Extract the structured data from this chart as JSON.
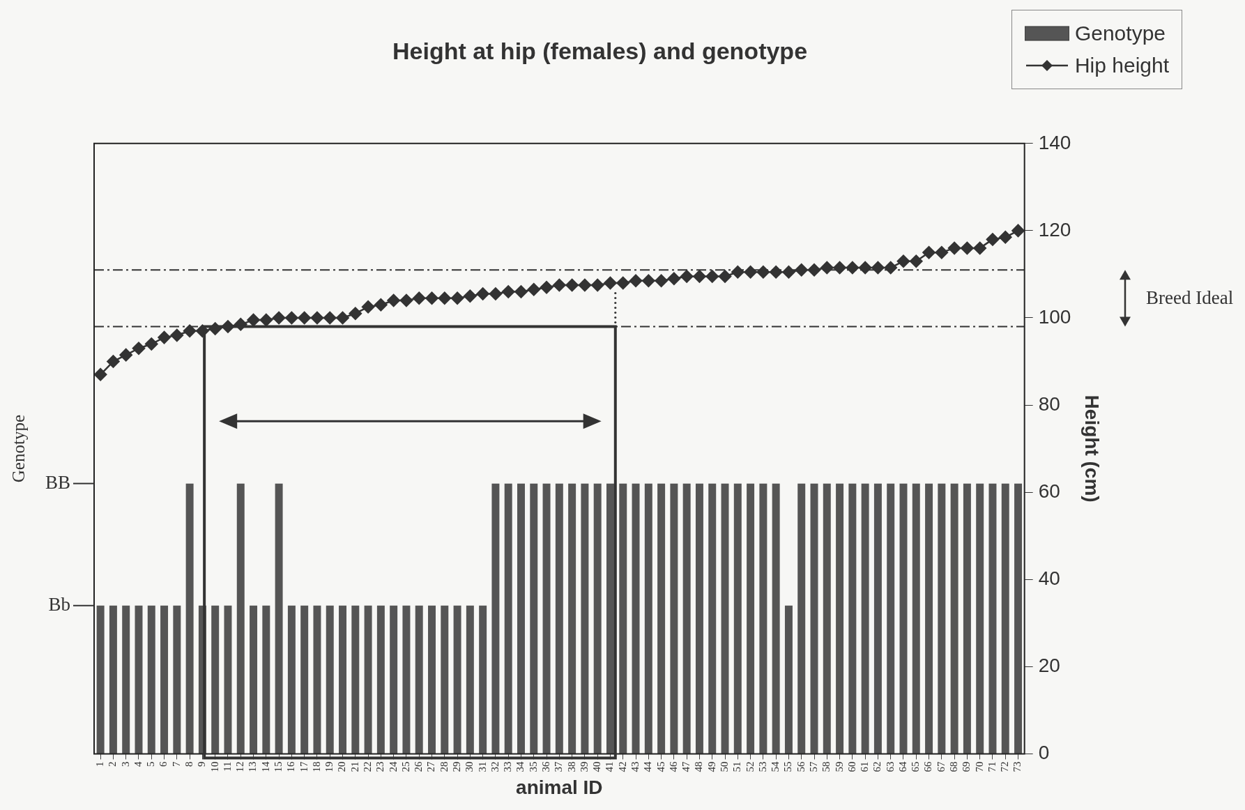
{
  "chart_data": {
    "type": "bar",
    "title": "Height at hip (females) and genotype",
    "xlabel": "animal ID",
    "ylabel": "Genotype",
    "y2label": "Height (cm)",
    "categories": [
      "1",
      "2",
      "3",
      "4",
      "5",
      "6",
      "7",
      "8",
      "9",
      "10",
      "11",
      "12",
      "13",
      "14",
      "15",
      "16",
      "17",
      "18",
      "19",
      "20",
      "21",
      "22",
      "23",
      "24",
      "25",
      "26",
      "27",
      "28",
      "29",
      "30",
      "31",
      "32",
      "33",
      "34",
      "35",
      "36",
      "37",
      "38",
      "39",
      "40",
      "41",
      "42",
      "43",
      "44",
      "45",
      "46",
      "47",
      "48",
      "49",
      "50",
      "51",
      "52",
      "53",
      "54",
      "55",
      "56",
      "57",
      "58",
      "59",
      "60",
      "61",
      "62",
      "63",
      "64",
      "65",
      "66",
      "67",
      "68",
      "69",
      "70",
      "71",
      "72",
      "73"
    ],
    "annotations": [
      "BB",
      "Bb",
      "Breed Ideal"
    ],
    "y2lim": [
      0,
      140
    ],
    "y2ticks": [
      0,
      20,
      40,
      60,
      80,
      100,
      120,
      140
    ],
    "series": [
      {
        "name": "Genotype",
        "axis": "y2",
        "color": "#555555",
        "values": [
          34,
          34,
          34,
          34,
          34,
          34,
          34,
          62,
          34,
          34,
          34,
          62,
          34,
          34,
          62,
          34,
          34,
          34,
          34,
          34,
          34,
          34,
          34,
          34,
          34,
          34,
          34,
          34,
          34,
          34,
          34,
          62,
          62,
          62,
          62,
          62,
          62,
          62,
          62,
          62,
          62,
          62,
          62,
          62,
          62,
          62,
          62,
          62,
          62,
          62,
          62,
          62,
          62,
          62,
          34,
          62,
          62,
          62,
          62,
          62,
          62,
          62,
          62,
          62,
          62,
          62,
          62,
          62,
          62,
          62,
          62,
          62,
          62
        ]
      },
      {
        "name": "Hip height",
        "type": "line",
        "axis": "y2",
        "color": "#333333",
        "values": [
          87,
          90,
          91.5,
          93,
          94,
          95.5,
          96,
          97,
          97,
          97.5,
          98,
          98.5,
          99.5,
          99.5,
          100,
          100,
          100,
          100,
          100,
          100,
          101,
          102.5,
          103,
          104,
          104,
          104.5,
          104.5,
          104.5,
          104.5,
          105,
          105.5,
          105.5,
          106,
          106,
          106.5,
          107,
          107.5,
          107.5,
          107.5,
          107.5,
          108,
          108,
          108.5,
          108.5,
          108.5,
          109,
          109.5,
          109.5,
          109.5,
          109.5,
          110.5,
          110.5,
          110.5,
          110.5,
          110.5,
          111,
          111,
          111.5,
          111.5,
          111.5,
          111.5,
          111.5,
          111.5,
          113,
          113,
          115,
          115,
          116,
          116,
          116,
          118,
          118.5,
          120
        ]
      }
    ],
    "ref_lines": [
      {
        "axis": "y2",
        "value": 98,
        "line_style": "dashed"
      },
      {
        "axis": "y2",
        "value": 111,
        "line_style": "dashed"
      }
    ],
    "legend": "top right",
    "grid": false,
    "marker": "diamond"
  }
}
